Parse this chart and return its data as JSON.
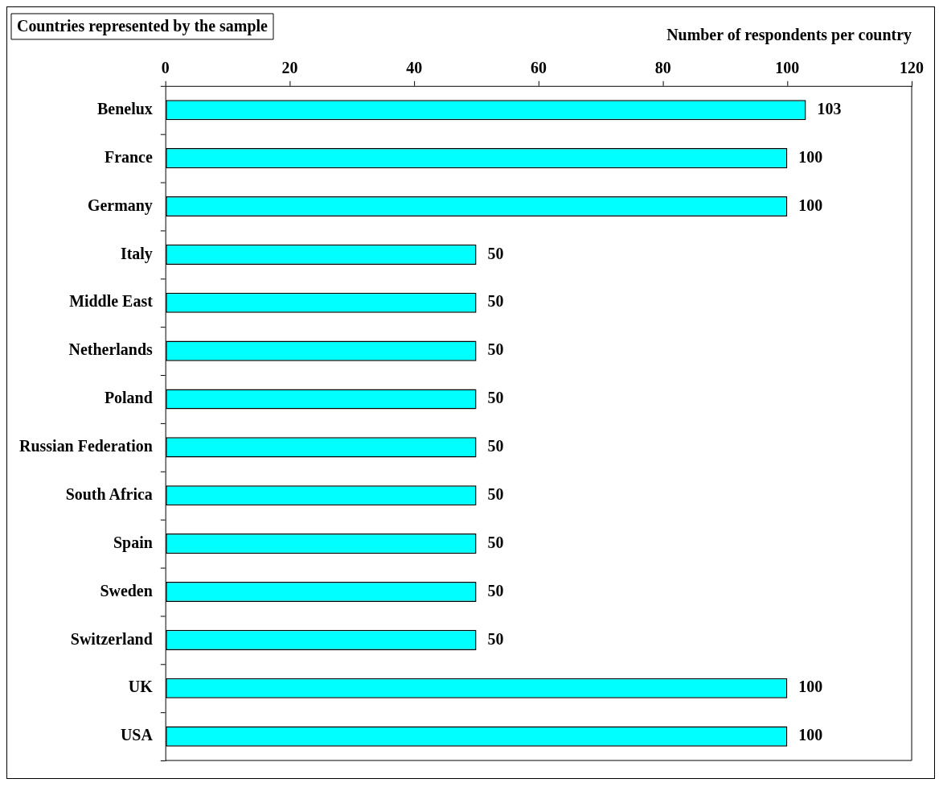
{
  "chart_data": {
    "type": "bar",
    "orientation": "horizontal",
    "title": "Countries represented by the sample",
    "xlabel": "Number of respondents per country",
    "categories": [
      "Benelux",
      "France",
      "Germany",
      "Italy",
      "Middle East",
      "Netherlands",
      "Poland",
      "Russian Federation",
      "South Africa",
      "Spain",
      "Sweden",
      "Switzerland",
      "UK",
      "USA"
    ],
    "values": [
      103,
      100,
      100,
      50,
      50,
      50,
      50,
      50,
      50,
      50,
      50,
      50,
      100,
      100
    ],
    "color": "#00ffff",
    "xlim": [
      0,
      120
    ],
    "xticks": [
      0,
      20,
      40,
      60,
      80,
      100,
      120
    ],
    "data_labels": true,
    "grid": false,
    "legend": false
  }
}
